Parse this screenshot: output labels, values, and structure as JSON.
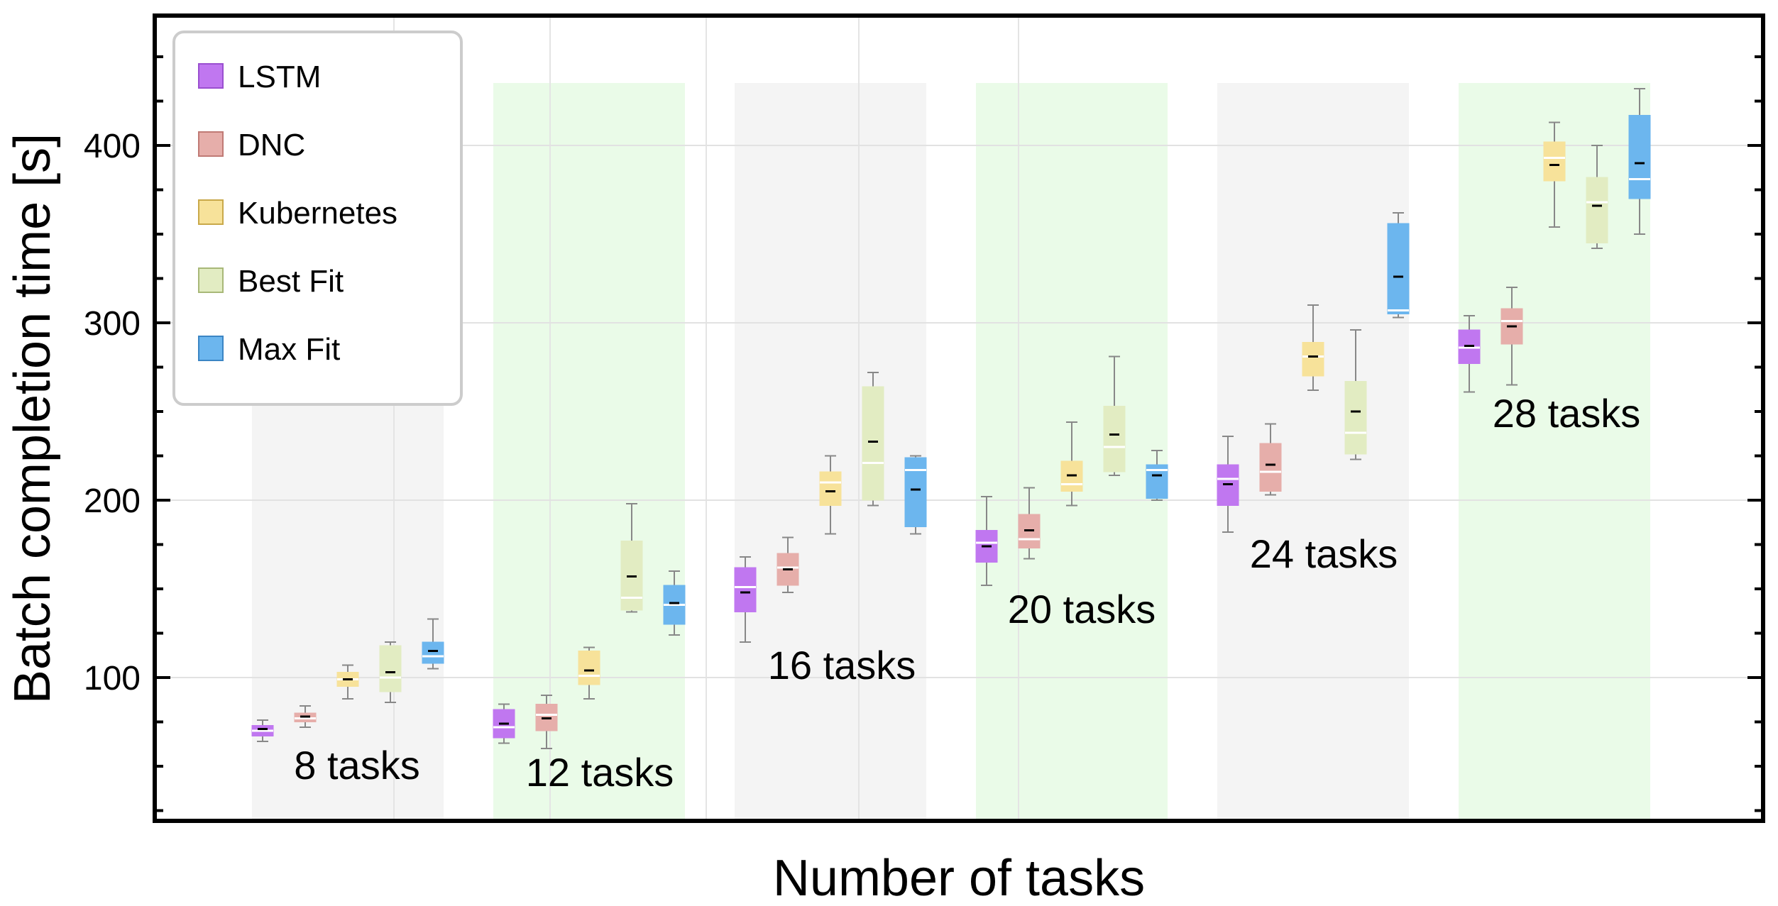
{
  "chart_data": {
    "type": "boxplot",
    "xlabel": "Number of tasks",
    "ylabel": "Batch completion time [s]",
    "ylim": [
      20,
      475
    ],
    "yticks": [
      100,
      200,
      300,
      400
    ],
    "legend_position": "top-left",
    "series": [
      {
        "name": "LSTM",
        "color": "#c077f0",
        "border": "#9a4fd0"
      },
      {
        "name": "DNC",
        "color": "#e6aeaa",
        "border": "#c07a75"
      },
      {
        "name": "Kubernetes",
        "color": "#f7e29a",
        "border": "#c9a94a"
      },
      {
        "name": "Best Fit",
        "color": "#e2ecc2",
        "border": "#a8b878"
      },
      {
        "name": "Max Fit",
        "color": "#6cb6ee",
        "border": "#3b85c4"
      }
    ],
    "groups": [
      {
        "label": "8 tasks",
        "shade": "gray",
        "boxes": [
          {
            "min": 64,
            "q1": 67,
            "median": 70,
            "mean": 71,
            "q3": 73,
            "max": 76
          },
          {
            "min": 72,
            "q1": 75,
            "median": 77,
            "mean": 78,
            "q3": 80,
            "max": 84
          },
          {
            "min": 88,
            "q1": 95,
            "median": 99,
            "mean": 99,
            "q3": 103,
            "max": 107
          },
          {
            "min": 86,
            "q1": 92,
            "median": 100,
            "mean": 103,
            "q3": 118,
            "max": 120
          },
          {
            "min": 105,
            "q1": 108,
            "median": 112,
            "mean": 115,
            "q3": 120,
            "max": 133
          }
        ]
      },
      {
        "label": "12 tasks",
        "shade": "green",
        "boxes": [
          {
            "min": 63,
            "q1": 66,
            "median": 72,
            "mean": 74,
            "q3": 82,
            "max": 85
          },
          {
            "min": 60,
            "q1": 70,
            "median": 79,
            "mean": 77,
            "q3": 85,
            "max": 90
          },
          {
            "min": 88,
            "q1": 96,
            "median": 101,
            "mean": 104,
            "q3": 115,
            "max": 117
          },
          {
            "min": 137,
            "q1": 138,
            "median": 145,
            "mean": 157,
            "q3": 177,
            "max": 198
          },
          {
            "min": 124,
            "q1": 130,
            "median": 141,
            "mean": 142,
            "q3": 152,
            "max": 160
          }
        ]
      },
      {
        "label": "16 tasks",
        "shade": "gray",
        "boxes": [
          {
            "min": 120,
            "q1": 137,
            "median": 151,
            "mean": 148,
            "q3": 162,
            "max": 168
          },
          {
            "min": 148,
            "q1": 152,
            "median": 162,
            "mean": 161,
            "q3": 170,
            "max": 179
          },
          {
            "min": 181,
            "q1": 197,
            "median": 210,
            "mean": 205,
            "q3": 216,
            "max": 225
          },
          {
            "min": 197,
            "q1": 200,
            "median": 221,
            "mean": 233,
            "q3": 264,
            "max": 272
          },
          {
            "min": 181,
            "q1": 185,
            "median": 217,
            "mean": 206,
            "q3": 224,
            "max": 225
          }
        ]
      },
      {
        "label": "20 tasks",
        "shade": "green",
        "boxes": [
          {
            "min": 152,
            "q1": 165,
            "median": 176,
            "mean": 174,
            "q3": 183,
            "max": 202
          },
          {
            "min": 167,
            "q1": 173,
            "median": 178,
            "mean": 183,
            "q3": 192,
            "max": 207
          },
          {
            "min": 197,
            "q1": 205,
            "median": 209,
            "mean": 214,
            "q3": 222,
            "max": 244
          },
          {
            "min": 214,
            "q1": 216,
            "median": 230,
            "mean": 237,
            "q3": 253,
            "max": 281
          },
          {
            "min": 200,
            "q1": 201,
            "median": 217,
            "mean": 214,
            "q3": 220,
            "max": 228
          }
        ]
      },
      {
        "label": "24 tasks",
        "shade": "gray",
        "boxes": [
          {
            "min": 182,
            "q1": 197,
            "median": 212,
            "mean": 209,
            "q3": 220,
            "max": 236
          },
          {
            "min": 203,
            "q1": 205,
            "median": 216,
            "mean": 220,
            "q3": 232,
            "max": 243
          },
          {
            "min": 262,
            "q1": 270,
            "median": 281,
            "mean": 281,
            "q3": 289,
            "max": 310
          },
          {
            "min": 223,
            "q1": 226,
            "median": 238,
            "mean": 250,
            "q3": 267,
            "max": 296
          },
          {
            "min": 303,
            "q1": 305,
            "median": 307,
            "mean": 326,
            "q3": 356,
            "max": 362
          }
        ]
      },
      {
        "label": "28 tasks",
        "shade": "green",
        "boxes": [
          {
            "min": 261,
            "q1": 277,
            "median": 286,
            "mean": 287,
            "q3": 296,
            "max": 304
          },
          {
            "min": 265,
            "q1": 288,
            "median": 301,
            "mean": 298,
            "q3": 308,
            "max": 320
          },
          {
            "min": 354,
            "q1": 380,
            "median": 393,
            "mean": 389,
            "q3": 402,
            "max": 413
          },
          {
            "min": 342,
            "q1": 345,
            "median": 368,
            "mean": 366,
            "q3": 382,
            "max": 400
          },
          {
            "min": 350,
            "q1": 370,
            "median": 381,
            "mean": 390,
            "q3": 417,
            "max": 432
          }
        ]
      }
    ]
  }
}
